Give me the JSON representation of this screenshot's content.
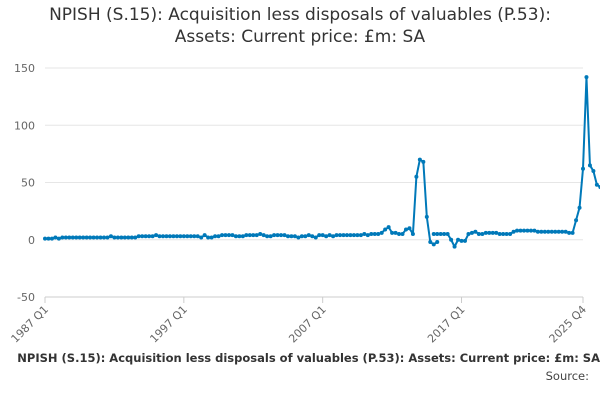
{
  "chart_data": {
    "type": "line",
    "title": "NPISH (S.15): Acquisition less disposals of valuables (P.53): Assets: Current price: £m: SA",
    "title_lines": [
      "NPISH (S.15): Acquisition less disposals of valuables (P.53):",
      "Assets: Current price: £m: SA"
    ],
    "xlabel": "",
    "ylabel": "",
    "x_tick_labels": [
      "1987 Q1",
      "1997 Q1",
      "2007 Q1",
      "2017 Q1",
      "2025 Q4"
    ],
    "y_tick_labels": [
      "150",
      "100",
      "50",
      "0",
      "-50"
    ],
    "ylim": [
      -50,
      150
    ],
    "grid": true,
    "legend": "none",
    "line_color": "#0079b9",
    "segments": [
      {
        "start": "1987 Q1",
        "values": [
          1,
          1,
          1,
          2,
          1,
          2,
          2,
          2,
          2,
          2,
          2,
          2,
          2,
          2,
          2,
          2,
          2,
          2,
          2,
          3,
          2,
          2,
          2,
          2,
          2,
          2,
          2,
          3,
          3,
          3,
          3,
          3,
          4,
          3,
          3,
          3,
          3,
          3,
          3,
          3,
          3,
          3,
          3,
          3,
          3,
          2,
          4,
          2,
          2,
          3,
          3,
          4,
          4,
          4,
          4,
          3,
          3,
          3,
          4,
          4,
          4,
          4,
          5,
          4,
          3,
          3,
          4,
          4,
          4,
          4,
          3,
          3,
          3,
          2,
          3,
          3,
          4,
          3,
          2,
          4,
          4,
          3,
          4,
          3,
          4,
          4,
          4,
          4,
          4,
          4,
          4,
          4,
          5,
          4,
          5,
          5,
          5,
          6,
          9,
          11,
          6,
          6,
          5,
          5,
          9,
          10,
          5,
          55,
          70,
          68,
          20,
          -2,
          -4,
          -2
        ]
      },
      {
        "start": "2015 Q1",
        "values": [
          5,
          5,
          5,
          5,
          5,
          0,
          -6,
          0,
          -1,
          -1,
          5,
          6,
          7,
          5,
          5,
          6,
          6,
          6,
          6,
          5,
          5,
          5,
          5,
          7,
          8,
          8,
          8,
          8,
          8,
          8,
          7,
          7,
          7,
          7,
          7,
          7,
          7,
          7,
          7,
          6,
          6,
          17,
          28,
          62,
          142,
          65,
          60,
          48,
          46,
          46,
          50,
          57,
          65
        ]
      }
    ]
  },
  "footer": {
    "series_label": "NPISH (S.15): Acquisition less disposals of valuables (P.53): Assets: Current price: £m: SA",
    "source_label": "Source:"
  }
}
